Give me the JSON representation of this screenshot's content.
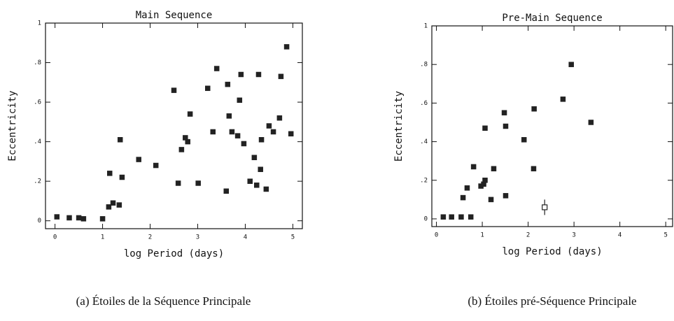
{
  "chart_data": [
    {
      "type": "scatter",
      "title": "Main Sequence",
      "xlabel": "log Period (days)",
      "ylabel": "Eccentricity",
      "caption": "(a) Étoiles de la Séquence Principale",
      "xlim": [
        -0.2,
        5.2
      ],
      "ylim": [
        -0.04,
        1.0
      ],
      "xticks": [
        0,
        1,
        2,
        3,
        4,
        5
      ],
      "yticks": [
        0,
        {
          "value": 0.2,
          "label": ".2"
        },
        {
          "value": 0.4,
          "label": ".4"
        },
        {
          "value": 0.6,
          "label": ".6"
        },
        {
          "value": 0.8,
          "label": ".8"
        },
        1
      ],
      "series": [
        {
          "color": "#222222",
          "x": [
            0.04,
            0.3,
            0.5,
            0.6,
            1.0,
            1.13,
            1.22,
            1.35,
            1.15,
            1.37,
            1.41,
            1.76,
            2.12,
            2.5,
            2.59,
            2.66,
            2.74,
            2.79,
            2.84,
            3.01,
            3.21,
            3.32,
            3.4,
            3.6,
            3.63,
            3.66,
            3.72,
            3.84,
            3.88,
            3.91,
            3.97,
            4.1,
            4.19,
            4.24,
            4.28,
            4.32,
            4.34,
            4.44,
            4.5,
            4.59,
            4.72,
            4.75,
            4.87,
            4.96
          ],
          "values": [
            0.02,
            0.015,
            0.015,
            0.01,
            0.01,
            0.07,
            0.09,
            0.08,
            0.24,
            0.41,
            0.22,
            0.31,
            0.28,
            0.66,
            0.19,
            0.36,
            0.42,
            0.4,
            0.54,
            0.19,
            0.67,
            0.45,
            0.77,
            0.15,
            0.69,
            0.53,
            0.45,
            0.43,
            0.61,
            0.74,
            0.39,
            0.2,
            0.32,
            0.18,
            0.74,
            0.26,
            0.41,
            0.16,
            0.48,
            0.45,
            0.52,
            0.73,
            0.88,
            0.44
          ]
        }
      ]
    },
    {
      "type": "scatter",
      "title": "Pre-Main Sequence",
      "xlabel": "log Period (days)",
      "ylabel": "Eccentricity",
      "caption": "(b) Étoiles pré-Séquence Principale",
      "xlim": [
        -0.1,
        5.15
      ],
      "ylim": [
        -0.04,
        1.0
      ],
      "xticks": [
        0,
        1,
        2,
        3,
        4,
        5
      ],
      "yticks": [
        0,
        {
          "value": 0.2,
          "label": ".2"
        },
        {
          "value": 0.4,
          "label": ".4"
        },
        {
          "value": 0.6,
          "label": ".6"
        },
        {
          "value": 0.8,
          "label": ".8"
        },
        1
      ],
      "series": [
        {
          "color": "#222222",
          "x": [
            0.15,
            0.33,
            0.54,
            0.75,
            0.58,
            0.67,
            0.81,
            0.97,
            1.03,
            1.06,
            1.06,
            1.19,
            1.25,
            1.48,
            1.51,
            1.51,
            1.91,
            2.13,
            2.12,
            2.76,
            2.94,
            3.37
          ],
          "values": [
            0.01,
            0.01,
            0.01,
            0.01,
            0.11,
            0.16,
            0.27,
            0.17,
            0.18,
            0.2,
            0.47,
            0.1,
            0.26,
            0.55,
            0.48,
            0.12,
            0.41,
            0.57,
            0.26,
            0.62,
            0.8,
            0.5
          ]
        },
        {
          "color": "#222222",
          "marker": "open",
          "x": [
            2.36
          ],
          "values": [
            0.06
          ],
          "errors": [
            0.04
          ]
        }
      ]
    }
  ]
}
